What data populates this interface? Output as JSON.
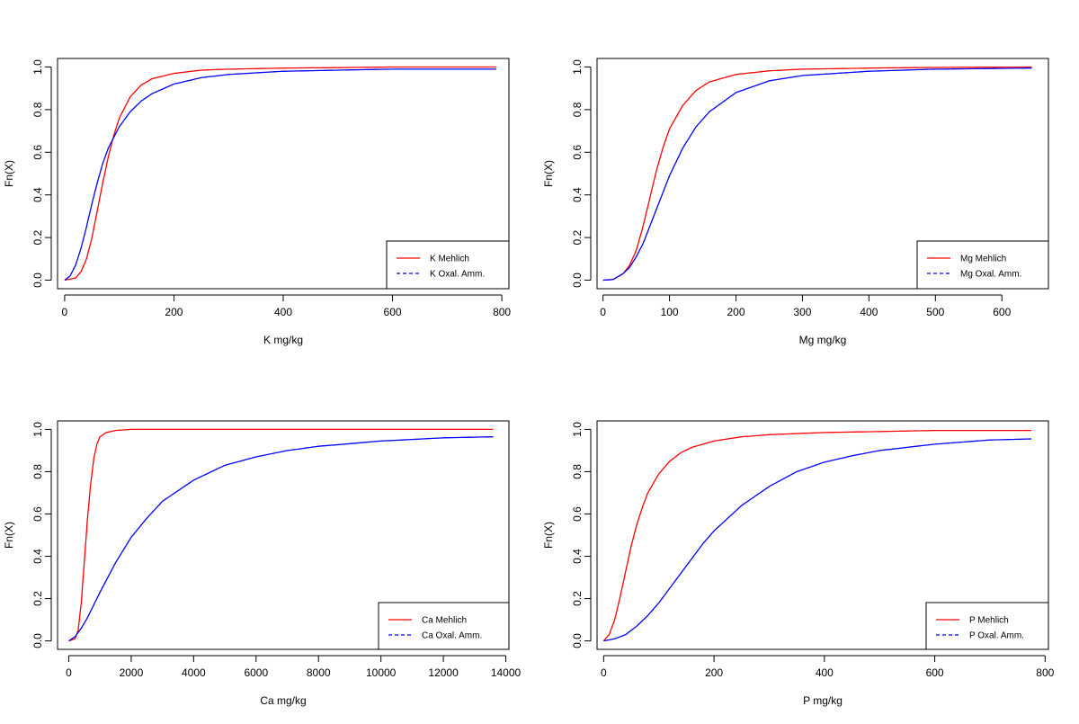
{
  "colors": {
    "mehlich": "#ff0000",
    "oxal": "#0000ff",
    "axis": "#000000"
  },
  "chart_data": [
    {
      "type": "line",
      "panel": "top-left",
      "xlabel": "K mg/kg",
      "ylabel": "Fn(X)",
      "xlim": [
        -13,
        813
      ],
      "ylim": [
        -0.04,
        1.04
      ],
      "xticks": [
        0,
        200,
        400,
        600,
        800
      ],
      "xtick_labels": [
        "0",
        "200",
        "400",
        "600",
        "800"
      ],
      "yticks": [
        0,
        0.2,
        0.4,
        0.6,
        0.8,
        1.0
      ],
      "ytick_labels": [
        "0.0",
        "0.2",
        "0.4",
        "0.6",
        "0.8",
        "1.0"
      ],
      "legend_position": "bottom-right",
      "series": [
        {
          "name": "K Mehlich",
          "color": "#ff0000",
          "linetype": "solid",
          "x": [
            0,
            20,
            30,
            40,
            50,
            60,
            70,
            80,
            90,
            100,
            120,
            140,
            160,
            200,
            250,
            300,
            400,
            500,
            600,
            790
          ],
          "y": [
            0,
            0.01,
            0.04,
            0.1,
            0.2,
            0.33,
            0.46,
            0.58,
            0.68,
            0.76,
            0.86,
            0.915,
            0.945,
            0.97,
            0.985,
            0.99,
            0.995,
            0.997,
            1.0,
            1.0
          ]
        },
        {
          "name": "K Oxal. Amm.",
          "color": "#0000ff",
          "linetype": "dashed",
          "x": [
            0,
            10,
            20,
            30,
            40,
            50,
            60,
            70,
            80,
            100,
            120,
            140,
            160,
            200,
            250,
            300,
            400,
            500,
            600,
            790
          ],
          "y": [
            0,
            0.02,
            0.07,
            0.15,
            0.25,
            0.36,
            0.46,
            0.55,
            0.62,
            0.72,
            0.79,
            0.84,
            0.875,
            0.92,
            0.95,
            0.965,
            0.98,
            0.985,
            0.99,
            0.99
          ]
        }
      ]
    },
    {
      "type": "line",
      "panel": "top-right",
      "xlabel": "Mg mg/kg",
      "ylabel": "Fn(X)",
      "xlim": [
        -9,
        670
      ],
      "ylim": [
        -0.04,
        1.04
      ],
      "xticks": [
        0,
        100,
        200,
        300,
        400,
        500,
        600
      ],
      "xtick_labels": [
        "0",
        "100",
        "200",
        "300",
        "400",
        "500",
        "600"
      ],
      "yticks": [
        0,
        0.2,
        0.4,
        0.6,
        0.8,
        1.0
      ],
      "ytick_labels": [
        "0.0",
        "0.2",
        "0.4",
        "0.6",
        "0.8",
        "1.0"
      ],
      "legend_position": "bottom-right",
      "series": [
        {
          "name": "Mg Mehlich",
          "color": "#ff0000",
          "linetype": "solid",
          "x": [
            0,
            15,
            30,
            40,
            50,
            60,
            70,
            80,
            90,
            100,
            120,
            140,
            160,
            200,
            250,
            300,
            400,
            500,
            645
          ],
          "y": [
            0,
            0.003,
            0.03,
            0.07,
            0.14,
            0.25,
            0.38,
            0.51,
            0.62,
            0.71,
            0.82,
            0.89,
            0.93,
            0.965,
            0.982,
            0.99,
            0.995,
            0.998,
            1.0
          ]
        },
        {
          "name": "Mg Oxal. Amm.",
          "color": "#0000ff",
          "linetype": "dashed",
          "x": [
            0,
            15,
            30,
            40,
            50,
            60,
            70,
            80,
            90,
            100,
            120,
            140,
            160,
            200,
            250,
            300,
            400,
            500,
            645
          ],
          "y": [
            0,
            0.003,
            0.03,
            0.06,
            0.11,
            0.17,
            0.25,
            0.33,
            0.41,
            0.49,
            0.62,
            0.72,
            0.79,
            0.88,
            0.935,
            0.96,
            0.98,
            0.99,
            0.995
          ]
        }
      ]
    },
    {
      "type": "line",
      "panel": "bottom-left",
      "xlabel": "Ca mg/kg",
      "ylabel": "Fn(X)",
      "xlim": [
        -360,
        14100
      ],
      "ylim": [
        -0.04,
        1.04
      ],
      "xticks": [
        0,
        2000,
        4000,
        6000,
        8000,
        10000,
        12000,
        14000
      ],
      "xtick_labels": [
        "0",
        "2000",
        "4000",
        "6000",
        "8000",
        "10000",
        "12000",
        "14000"
      ],
      "yticks": [
        0,
        0.2,
        0.4,
        0.6,
        0.8,
        1.0
      ],
      "ytick_labels": [
        "0.0",
        "0.2",
        "0.4",
        "0.6",
        "0.8",
        "1.0"
      ],
      "legend_position": "bottom-right",
      "series": [
        {
          "name": "Ca Mehlich",
          "color": "#ff0000",
          "linetype": "solid",
          "x": [
            0,
            200,
            300,
            400,
            500,
            600,
            700,
            800,
            900,
            1000,
            1200,
            1500,
            2000,
            3000,
            13600
          ],
          "y": [
            0,
            0.01,
            0.05,
            0.18,
            0.38,
            0.58,
            0.74,
            0.86,
            0.93,
            0.965,
            0.985,
            0.995,
            1.0,
            1.0,
            1.0
          ]
        },
        {
          "name": "Ca Oxal. Amm.",
          "color": "#0000ff",
          "linetype": "dashed",
          "x": [
            0,
            200,
            400,
            600,
            800,
            1000,
            1500,
            2000,
            2500,
            3000,
            4000,
            5000,
            6000,
            7000,
            8000,
            10000,
            12000,
            13600
          ],
          "y": [
            0,
            0.02,
            0.06,
            0.11,
            0.17,
            0.23,
            0.37,
            0.49,
            0.58,
            0.66,
            0.76,
            0.83,
            0.87,
            0.9,
            0.92,
            0.945,
            0.96,
            0.965
          ]
        }
      ]
    },
    {
      "type": "line",
      "panel": "bottom-right",
      "xlabel": "P mg/kg",
      "ylabel": "Fn(X)",
      "xlim": [
        -12,
        806
      ],
      "ylim": [
        -0.04,
        1.04
      ],
      "xticks": [
        0,
        200,
        400,
        600,
        800
      ],
      "xtick_labels": [
        "0",
        "200",
        "400",
        "600",
        "800"
      ],
      "yticks": [
        0,
        0.2,
        0.4,
        0.6,
        0.8,
        1.0
      ],
      "ytick_labels": [
        "0.0",
        "0.2",
        "0.4",
        "0.6",
        "0.8",
        "1.0"
      ],
      "legend_position": "bottom-right",
      "series": [
        {
          "name": "P Mehlich",
          "color": "#ff0000",
          "linetype": "solid",
          "x": [
            0,
            10,
            20,
            30,
            40,
            50,
            60,
            70,
            80,
            100,
            120,
            140,
            160,
            200,
            250,
            300,
            400,
            500,
            600,
            775
          ],
          "y": [
            0,
            0.03,
            0.1,
            0.21,
            0.33,
            0.45,
            0.55,
            0.63,
            0.7,
            0.79,
            0.85,
            0.89,
            0.915,
            0.945,
            0.965,
            0.975,
            0.985,
            0.99,
            0.995,
            0.995
          ]
        },
        {
          "name": "P Oxal. Amm.",
          "color": "#0000ff",
          "linetype": "dashed",
          "x": [
            0,
            20,
            40,
            60,
            80,
            100,
            120,
            140,
            160,
            180,
            200,
            250,
            300,
            350,
            400,
            450,
            500,
            600,
            700,
            775
          ],
          "y": [
            0,
            0.01,
            0.03,
            0.07,
            0.12,
            0.18,
            0.25,
            0.32,
            0.39,
            0.46,
            0.52,
            0.64,
            0.73,
            0.8,
            0.845,
            0.875,
            0.9,
            0.93,
            0.95,
            0.955
          ]
        }
      ]
    }
  ]
}
